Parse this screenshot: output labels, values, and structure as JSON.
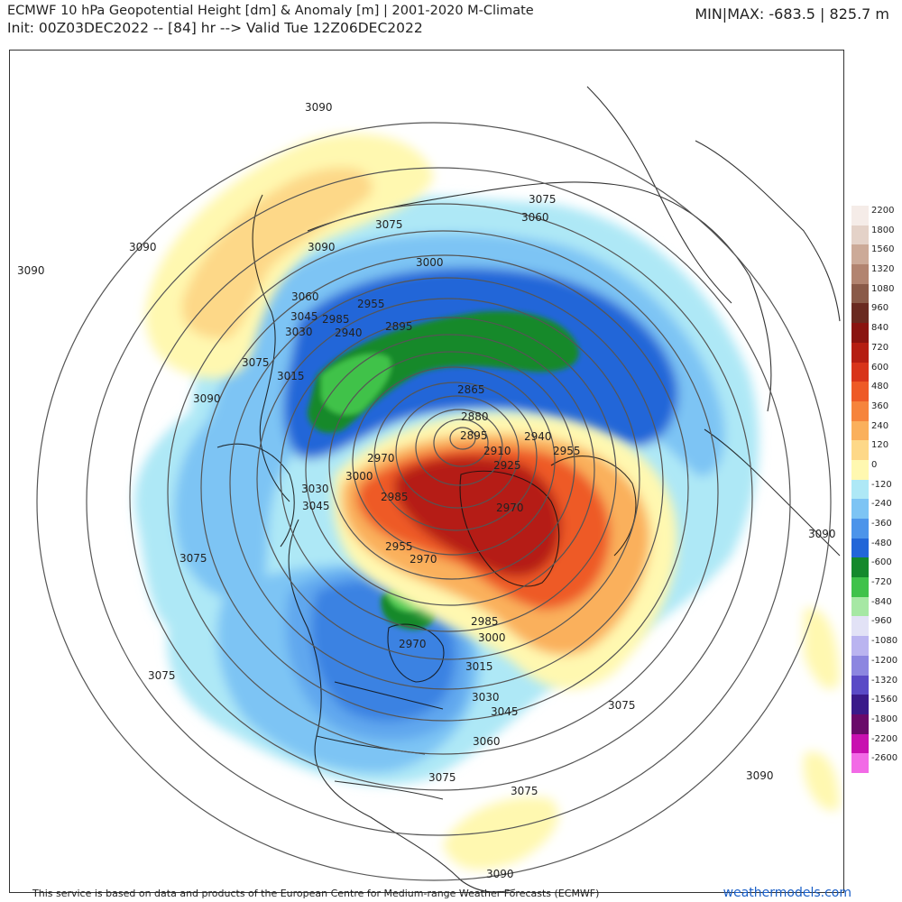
{
  "header": {
    "title": "ECMWF 10 hPa Geopotential Height [dm] & Anomaly [m] | 2001-2020 M-Climate",
    "subtitle": "Init: 00Z03DEC2022 -- [84] hr --> Valid Tue 12Z06DEC2022",
    "minmax": "MIN|MAX: -683.5 | 825.7 m"
  },
  "legend": {
    "entries": [
      {
        "label": "2200",
        "color": "#f5ece8"
      },
      {
        "label": "1800",
        "color": "#e4d2c8"
      },
      {
        "label": "1560",
        "color": "#ccaa98"
      },
      {
        "label": "1320",
        "color": "#b28470"
      },
      {
        "label": "1080",
        "color": "#8a5a48"
      },
      {
        "label": "960",
        "color": "#6a2a20"
      },
      {
        "label": "840",
        "color": "#8a1410"
      },
      {
        "label": "720",
        "color": "#b51e12"
      },
      {
        "label": "600",
        "color": "#d8341a"
      },
      {
        "label": "480",
        "color": "#ee5a26"
      },
      {
        "label": "360",
        "color": "#f6843c"
      },
      {
        "label": "240",
        "color": "#fab05c"
      },
      {
        "label": "120",
        "color": "#fdd888"
      },
      {
        "label": "0",
        "color": "#fff8b0"
      },
      {
        "label": "-120",
        "color": "#aee8f6"
      },
      {
        "label": "-240",
        "color": "#7dc4f4"
      },
      {
        "label": "-360",
        "color": "#4c94ea"
      },
      {
        "label": "-480",
        "color": "#2266d8"
      },
      {
        "label": "-600",
        "color": "#14892c"
      },
      {
        "label": "-720",
        "color": "#3fc24a"
      },
      {
        "label": "-840",
        "color": "#a6e8a4"
      },
      {
        "label": "-960",
        "color": "#e2e2f6"
      },
      {
        "label": "-1080",
        "color": "#bab4f0"
      },
      {
        "label": "-1200",
        "color": "#8c86e0"
      },
      {
        "label": "-1320",
        "color": "#5a4ac6"
      },
      {
        "label": "-1560",
        "color": "#3a1a8a"
      },
      {
        "label": "-1800",
        "color": "#6a0a6a"
      },
      {
        "label": "-2200",
        "color": "#c810b0"
      },
      {
        "label": "-2600",
        "color": "#f26ae6"
      }
    ]
  },
  "contour_labels": [
    "3090",
    "3090",
    "3090",
    "3090",
    "3090",
    "3090",
    "3090",
    "3090",
    "3075",
    "3075",
    "3075",
    "3075",
    "3075",
    "3075",
    "3075",
    "3075",
    "3060",
    "3060",
    "3060",
    "3045",
    "3045",
    "3045",
    "3030",
    "3030",
    "3030",
    "3015",
    "3015",
    "3000",
    "3000",
    "3000",
    "2985",
    "2985",
    "2985",
    "2970",
    "2970",
    "2970",
    "2970",
    "2955",
    "2955",
    "2955",
    "2940",
    "2940",
    "2925",
    "2910",
    "2895",
    "2895",
    "2880",
    "2865"
  ],
  "footer": {
    "note": "This service is based on data and products of the European Centre for Medium-range Weather Forecasts (ECMWF)",
    "brand": "weathermodels.com"
  }
}
